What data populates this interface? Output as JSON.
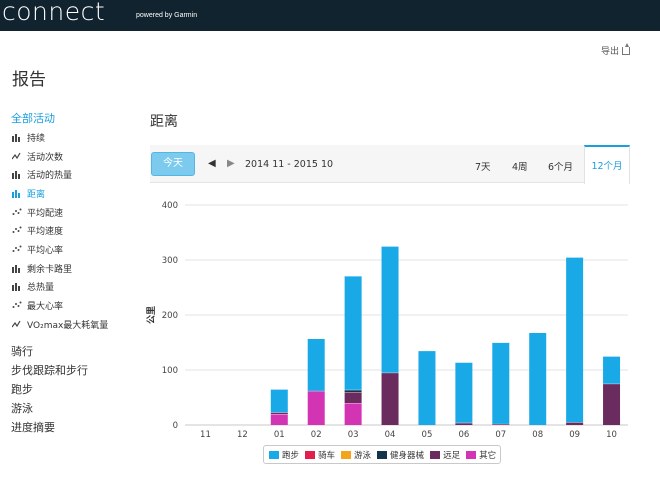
{
  "header": {
    "logo_text": "connect",
    "powered_by": "powered by Garmin"
  },
  "export_label": "导出",
  "page_title": "报告",
  "sidebar": {
    "category": "全部活动",
    "items": [
      {
        "label": "持续",
        "icon": "bar-chart-icon",
        "active": false
      },
      {
        "label": "活动次数",
        "icon": "line-chart-icon",
        "active": false
      },
      {
        "label": "活动的热量",
        "icon": "bar-chart-icon",
        "active": false
      },
      {
        "label": "距离",
        "icon": "bar-chart-icon",
        "active": true
      },
      {
        "label": "平均配速",
        "icon": "scatter-chart-icon",
        "active": false
      },
      {
        "label": "平均速度",
        "icon": "scatter-chart-icon",
        "active": false
      },
      {
        "label": "平均心率",
        "icon": "scatter-chart-icon",
        "active": false
      },
      {
        "label": "剩余卡路里",
        "icon": "bar-chart-icon",
        "active": false
      },
      {
        "label": "总热量",
        "icon": "bar-chart-icon",
        "active": false
      },
      {
        "label": "最大心率",
        "icon": "scatter-chart-icon",
        "active": false
      },
      {
        "label": "VO₂max最大耗氧量",
        "icon": "line-chart-icon",
        "active": false
      }
    ],
    "sections": [
      "骑行",
      "步伐跟踪和步行",
      "跑步",
      "游泳",
      "进度摘要"
    ]
  },
  "chart_title": "距离",
  "toolbar": {
    "today": "今天",
    "prev_icon": "chevron-left-icon",
    "next_icon": "chevron-right-icon",
    "range": "2014 11 - 2015 10",
    "periods": [
      "7天",
      "4周",
      "6个月",
      "12个月"
    ],
    "active_period": "12个月"
  },
  "chart_data": {
    "type": "bar",
    "stacked": true,
    "ylabel": "公里",
    "ylim": [
      0,
      400
    ],
    "yticks": [
      0,
      100,
      200,
      300,
      400
    ],
    "grid": true,
    "legend_position": "bottom",
    "categories": [
      "11",
      "12",
      "01",
      "02",
      "03",
      "04",
      "05",
      "06",
      "07",
      "08",
      "09",
      "10"
    ],
    "series": [
      {
        "name": "跑步",
        "color": "#1aa9e7",
        "values": [
          0,
          0,
          42,
          95,
          207,
          230,
          135,
          110,
          148,
          168,
          300,
          50
        ]
      },
      {
        "name": "骑车",
        "color": "#e21e4d",
        "values": [
          0,
          0,
          0,
          0,
          0,
          0,
          0,
          0,
          0,
          0,
          0,
          0
        ]
      },
      {
        "name": "游泳",
        "color": "#f4a41c",
        "values": [
          0,
          0,
          0,
          0,
          0,
          0,
          0,
          0,
          0,
          0,
          0,
          0
        ]
      },
      {
        "name": "健身器械",
        "color": "#14344c",
        "values": [
          0,
          0,
          0,
          0,
          4,
          0,
          0,
          0,
          0,
          0,
          0,
          0
        ]
      },
      {
        "name": "远足",
        "color": "#6a2c5f",
        "values": [
          0,
          0,
          3,
          0,
          20,
          95,
          0,
          4,
          2,
          0,
          5,
          75
        ]
      },
      {
        "name": "其它",
        "color": "#d234b4",
        "values": [
          0,
          0,
          20,
          62,
          40,
          0,
          0,
          0,
          0,
          0,
          0,
          0
        ]
      }
    ]
  }
}
